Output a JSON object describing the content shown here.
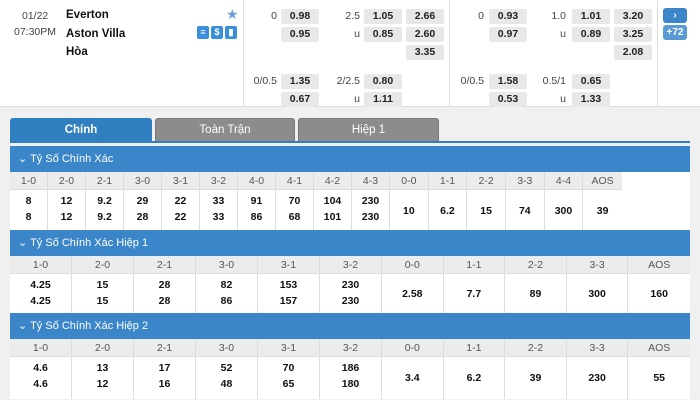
{
  "match": {
    "date": "01/22",
    "time": "07:30PM",
    "home": "Everton",
    "away": "Aston Villa",
    "draw": "Hòa",
    "icons": [
      "stats-icon",
      "money-icon",
      "chart-icon"
    ],
    "ft": {
      "hdp_line": "0",
      "hdp_home": "0.98",
      "hdp_away": "0.95",
      "ou_line": "2.5",
      "ou_over": "1.05",
      "ou_under_label": "u",
      "ou_under": "0.85",
      "x12_home": "2.66",
      "x12_away": "2.60",
      "x12_draw": "3.35",
      "hdp2_line": "0/0.5",
      "hdp2_home": "1.35",
      "hdp2_away": "0.67",
      "ou2_line": "2/2.5",
      "ou2_over": "0.80",
      "ou2_under_label": "u",
      "ou2_under": "1.11"
    },
    "ht": {
      "hdp_line": "0",
      "hdp_home": "0.93",
      "hdp_away": "0.97",
      "ou_line": "1.0",
      "ou_over": "1.01",
      "ou_under_label": "u",
      "ou_under": "0.89",
      "x12_home": "3.20",
      "x12_away": "3.25",
      "x12_draw": "2.08",
      "hdp2_line": "0/0.5",
      "hdp2_home": "1.58",
      "hdp2_away": "0.53",
      "ou2_line": "0.5/1",
      "ou2_over": "0.65",
      "ou2_under_label": "u",
      "ou2_under": "1.33"
    },
    "nav_next": "›",
    "more_count": "+72"
  },
  "tabs": [
    "Chính",
    "Toàn Trận",
    "Hiệp 1"
  ],
  "sections": [
    {
      "title": "Tỷ Số Chính Xác",
      "pairs": [
        {
          "h": "1-0",
          "a": "8",
          "b": "8"
        },
        {
          "h": "2-0",
          "a": "12",
          "b": "12"
        },
        {
          "h": "2-1",
          "a": "9.2",
          "b": "9.2"
        },
        {
          "h": "3-0",
          "a": "29",
          "b": "28"
        },
        {
          "h": "3-1",
          "a": "22",
          "b": "22"
        },
        {
          "h": "3-2",
          "a": "33",
          "b": "33"
        },
        {
          "h": "4-0",
          "a": "91",
          "b": "86"
        },
        {
          "h": "4-1",
          "a": "70",
          "b": "68"
        },
        {
          "h": "4-2",
          "a": "104",
          "b": "101"
        },
        {
          "h": "4-3",
          "a": "230",
          "b": "230"
        }
      ],
      "singles": [
        {
          "h": "0-0",
          "v": "10"
        },
        {
          "h": "1-1",
          "v": "6.2"
        },
        {
          "h": "2-2",
          "v": "15"
        },
        {
          "h": "3-3",
          "v": "74"
        },
        {
          "h": "4-4",
          "v": "300"
        },
        {
          "h": "AOS",
          "v": "39"
        }
      ]
    },
    {
      "title": "Tỷ Số Chính Xác Hiệp 1",
      "pairs": [
        {
          "h": "1-0",
          "a": "4.25",
          "b": "4.25"
        },
        {
          "h": "2-0",
          "a": "15",
          "b": "15"
        },
        {
          "h": "2-1",
          "a": "28",
          "b": "28"
        },
        {
          "h": "3-0",
          "a": "82",
          "b": "86"
        },
        {
          "h": "3-1",
          "a": "153",
          "b": "157"
        },
        {
          "h": "3-2",
          "a": "230",
          "b": "230"
        }
      ],
      "singles": [
        {
          "h": "0-0",
          "v": "2.58"
        },
        {
          "h": "1-1",
          "v": "7.7"
        },
        {
          "h": "2-2",
          "v": "89"
        },
        {
          "h": "3-3",
          "v": "300"
        },
        {
          "h": "AOS",
          "v": "160"
        }
      ]
    },
    {
      "title": "Tỷ Số Chính Xác Hiệp 2",
      "pairs": [
        {
          "h": "1-0",
          "a": "4.6",
          "b": "4.6"
        },
        {
          "h": "2-0",
          "a": "13",
          "b": "12"
        },
        {
          "h": "2-1",
          "a": "17",
          "b": "16"
        },
        {
          "h": "3-0",
          "a": "52",
          "b": "48"
        },
        {
          "h": "3-1",
          "a": "70",
          "b": "65"
        },
        {
          "h": "3-2",
          "a": "186",
          "b": "180"
        }
      ],
      "singles": [
        {
          "h": "0-0",
          "v": "3.4"
        },
        {
          "h": "1-1",
          "v": "6.2"
        },
        {
          "h": "2-2",
          "v": "39"
        },
        {
          "h": "3-3",
          "v": "230"
        },
        {
          "h": "AOS",
          "v": "55"
        }
      ]
    }
  ]
}
